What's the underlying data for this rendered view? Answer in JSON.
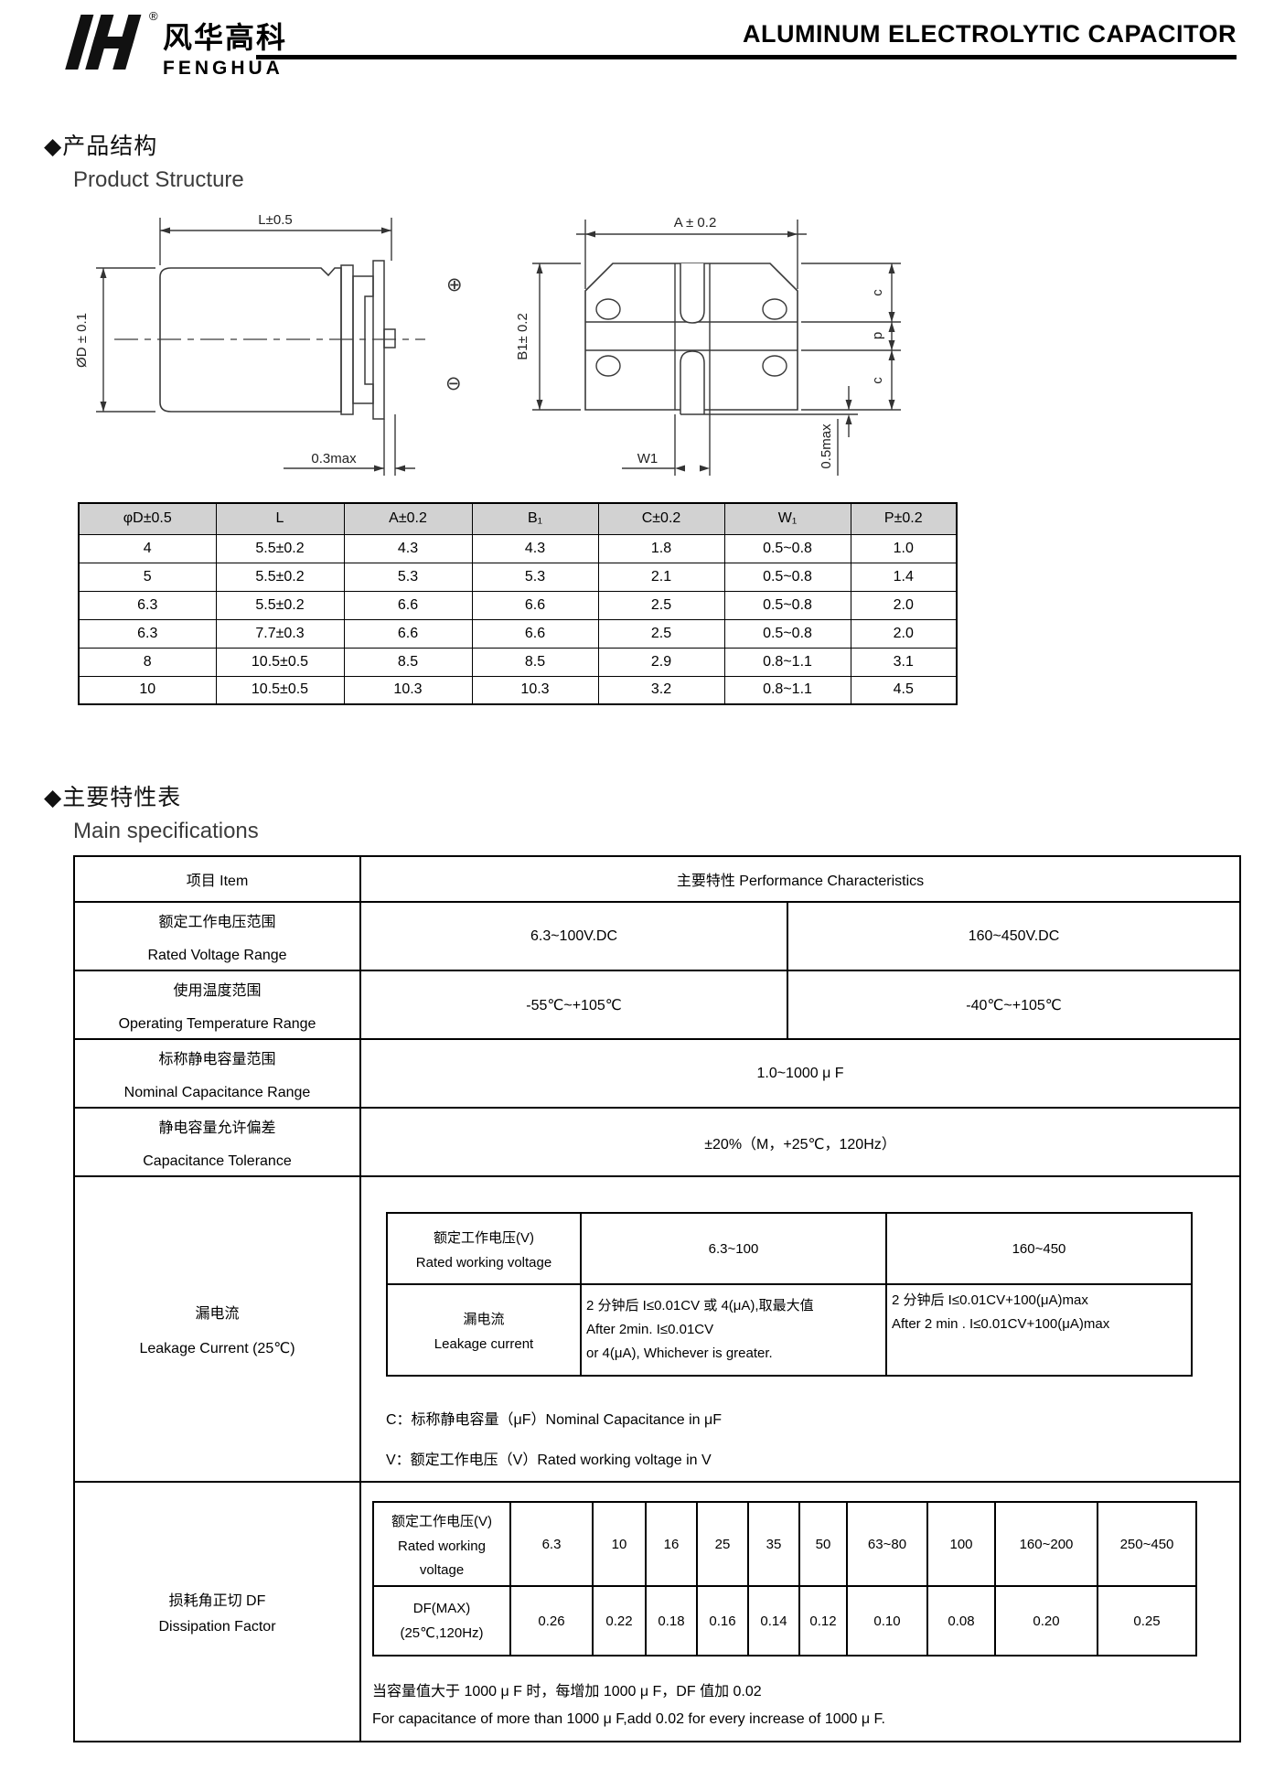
{
  "header": {
    "brand_cn": "风华高科",
    "brand_en": "FENGHUA",
    "registered_mark": "®",
    "title": "ALUMINUM ELECTROLYTIC CAPACITOR"
  },
  "section_structure": {
    "title_cn": "◆产品结构",
    "title_en": "Product Structure"
  },
  "drawing": {
    "dim_L": "L±0.5",
    "dim_D": "ØD ± 0.1",
    "dim_03max": "0.3max",
    "polarity_plus": "⊕",
    "polarity_minus": "⊖",
    "dim_A": "A ± 0.2",
    "dim_B1": "B1± 0.2",
    "dim_c": "c",
    "dim_p": "p",
    "dim_W1": "W1",
    "dim_05max": "0.5max"
  },
  "dim_table": {
    "headers": [
      "φD±0.5",
      "L",
      "A±0.2",
      "B₁",
      "C±0.2",
      "W₁",
      "P±0.2"
    ],
    "rows": [
      [
        "4",
        "5.5±0.2",
        "4.3",
        "4.3",
        "1.8",
        "0.5~0.8",
        "1.0"
      ],
      [
        "5",
        "5.5±0.2",
        "5.3",
        "5.3",
        "2.1",
        "0.5~0.8",
        "1.4"
      ],
      [
        "6.3",
        "5.5±0.2",
        "6.6",
        "6.6",
        "2.5",
        "0.5~0.8",
        "2.0"
      ],
      [
        "6.3",
        "7.7±0.3",
        "6.6",
        "6.6",
        "2.5",
        "0.5~0.8",
        "2.0"
      ],
      [
        "8",
        "10.5±0.5",
        "8.5",
        "8.5",
        "2.9",
        "0.8~1.1",
        "3.1"
      ],
      [
        "10",
        "10.5±0.5",
        "10.3",
        "10.3",
        "3.2",
        "0.8~1.1",
        "4.5"
      ]
    ]
  },
  "section_specs": {
    "title_cn": "◆主要特性表",
    "title_en": "Main specifications"
  },
  "spec_table": {
    "item_header": "项目 Item",
    "perf_header": "主要特性 Performance Characteristics",
    "rows": {
      "voltage": {
        "cn": "额定工作电压范围",
        "en": "Rated Voltage Range",
        "low": "6.3~100V.DC",
        "high": "160~450V.DC"
      },
      "temp": {
        "cn": "使用温度范围",
        "en": "Operating Temperature Range",
        "low": "-55℃~+105℃",
        "high": "-40℃~+105℃"
      },
      "capacitance": {
        "cn": "标称静电容量范围",
        "en": "Nominal Capacitance Range",
        "value": "1.0~1000 μ F"
      },
      "tolerance": {
        "cn": "静电容量允许偏差",
        "en": "Capacitance Tolerance",
        "value": "±20%（M，+25℃，120Hz）"
      },
      "leakage": {
        "cn": "漏电流",
        "en": "Leakage Current (25℃)",
        "inner": {
          "header_cn": "额定工作电压(V)",
          "header_en": "Rated working voltage",
          "col_low": "6.3~100",
          "col_high": "160~450",
          "row_cn": "漏电流",
          "row_en": "Leakage current",
          "low_line1": "2 分钟后 I≤0.01CV 或 4(μA),取最大值",
          "low_line2": "After 2min. I≤0.01CV",
          "low_line3": "or 4(μA), Whichever is greater.",
          "high_line1": "2 分钟后 I≤0.01CV+100(μA)max",
          "high_line2": "After 2 min . I≤0.01CV+100(μA)max"
        },
        "note_c": "C：标称静电容量（μF）Nominal Capacitance in μF",
        "note_v": "V：额定工作电压（V）Rated working voltage in V"
      },
      "df": {
        "cn": "损耗角正切 DF",
        "en": "Dissipation Factor",
        "inner": {
          "header_line1": "额定工作电压(V)",
          "header_line2": "Rated working",
          "header_line3": "voltage",
          "row_line1": "DF(MAX)",
          "row_line2": "(25℃,120Hz)",
          "voltages": [
            "6.3",
            "10",
            "16",
            "25",
            "35",
            "50",
            "63~80",
            "100",
            "160~200",
            "250~450"
          ],
          "df_values": [
            "0.26",
            "0.22",
            "0.18",
            "0.16",
            "0.14",
            "0.12",
            "0.10",
            "0.08",
            "0.20",
            "0.25"
          ]
        },
        "note_cn": "当容量值大于 1000 μ F 时，每增加 1000 μ F，DF 值加 0.02",
        "note_en": "For capacitance of more than 1000 μ F,add 0.02 for every increase of 1000 μ F."
      }
    }
  }
}
